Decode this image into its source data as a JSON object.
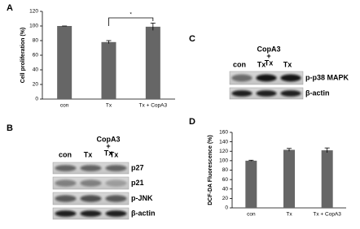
{
  "chart_data": [
    {
      "type": "bar",
      "panel": "A",
      "ylabel": "Cell proliferation (%)",
      "categories": [
        "con",
        "Tx",
        "Tx + CopA3"
      ],
      "values": [
        100,
        78,
        99
      ],
      "errors": [
        0,
        2,
        5
      ],
      "color": "#666666",
      "ylim": [
        0,
        120
      ],
      "yticks": [
        0,
        20,
        40,
        60,
        80,
        100,
        120
      ],
      "annotation": "*"
    },
    {
      "type": "bar",
      "panel": "D",
      "ylabel": "DCF-DA Fluorescence (%)",
      "categories": [
        "con",
        "Tx",
        "Tx + CopA3"
      ],
      "values": [
        100,
        123,
        122
      ],
      "errors": [
        1,
        3,
        5
      ],
      "color": "#666666",
      "ylim": [
        0,
        160
      ],
      "yticks": [
        0,
        20,
        40,
        60,
        80,
        100,
        120,
        140,
        160
      ]
    }
  ],
  "blots": [
    {
      "panel": "B",
      "treatment": [
        "CopA3",
        "+",
        "Tx"
      ],
      "lanes": [
        "con",
        "Tx",
        "Tx"
      ],
      "rows": [
        "p27",
        "p21",
        "p-JNK",
        "β-actin"
      ]
    },
    {
      "panel": "C",
      "treatment": [
        "CopA3",
        "+",
        "Tx"
      ],
      "lanes": [
        "con",
        "Tx",
        "Tx"
      ],
      "rows": [
        "p-p38 MAPK",
        "β-actin"
      ]
    }
  ]
}
